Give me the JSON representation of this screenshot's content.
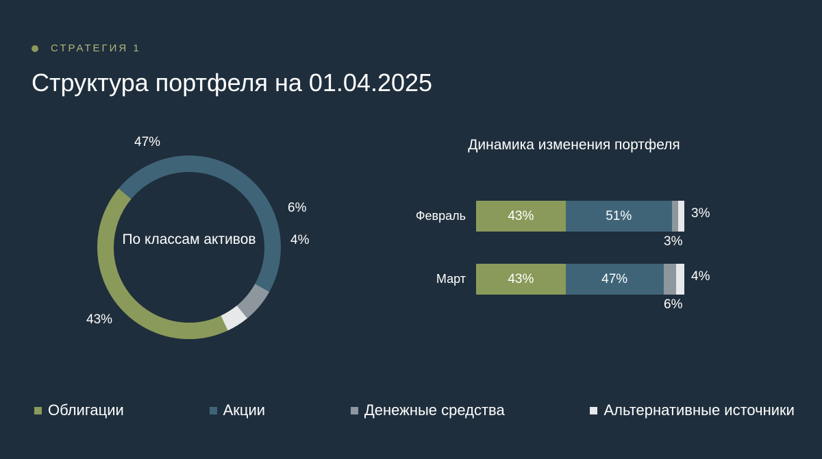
{
  "header": {
    "eyebrow": "СТРАТЕГИЯ 1",
    "title": "Структура портфеля на 01.04.2025"
  },
  "colors": {
    "bonds": "#8a9a5b",
    "stocks": "#3f6478",
    "cash": "#8e979e",
    "alternative": "#e6e8ea"
  },
  "chart_data": [
    {
      "type": "pie",
      "variant": "donut",
      "center_label": "По классам активов",
      "slices": [
        {
          "key": "bonds",
          "value": 43,
          "label": "43%"
        },
        {
          "key": "stocks",
          "value": 47,
          "label": "47%"
        },
        {
          "key": "cash",
          "value": 6,
          "label": "6%"
        },
        {
          "key": "alternative",
          "value": 4,
          "label": "4%"
        }
      ]
    },
    {
      "type": "bar",
      "orientation": "horizontal",
      "stacked": true,
      "title": "Динамика изменения портфеля",
      "categories": [
        "Февраль",
        "Март"
      ],
      "series": [
        {
          "key": "bonds",
          "name": "Облигации",
          "values": [
            43,
            43
          ],
          "labels": [
            "43%",
            "43%"
          ]
        },
        {
          "key": "stocks",
          "name": "Акции",
          "values": [
            51,
            47
          ],
          "labels": [
            "51%",
            "47%"
          ]
        },
        {
          "key": "cash",
          "name": "Денежные средства",
          "values": [
            3,
            6
          ],
          "labels": [
            "3%",
            "6%"
          ]
        },
        {
          "key": "alternative",
          "name": "Альтернативные источники",
          "values": [
            3,
            4
          ],
          "labels": [
            "3%",
            "4%"
          ]
        }
      ]
    }
  ],
  "legend": [
    {
      "key": "bonds",
      "label": "Облигации"
    },
    {
      "key": "stocks",
      "label": "Акции"
    },
    {
      "key": "cash",
      "label": "Денежные средства"
    },
    {
      "key": "alternative",
      "label": "Альтернативные источники"
    }
  ]
}
